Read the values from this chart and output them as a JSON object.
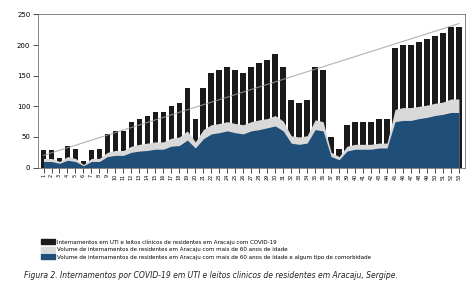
{
  "title": "",
  "figure_caption": "Figura 2. Internamentos por COVID-19 em UTI e leitos clinicos de residentes em Aracaju, Sergipe.",
  "ylabel": "",
  "ylim": [
    0,
    250
  ],
  "yticks": [
    0,
    50,
    100,
    150,
    200,
    250
  ],
  "background_color": "#ffffff",
  "bar_color": "#1a1a1a",
  "area1_color": "#d9d9d9",
  "area2_color": "#1f4e79",
  "trendline_color": "#a0a0a0",
  "legend_labels": [
    "Internamentos em UTI e leitos clínicos de residentes em Aracaju com COVID-19",
    "Volume de internamentos de residentes em Aracaju com mais de 60 anos de idade",
    "Volume de internamentos de residentes em Aracaju com mais de 60 anos de idade e algum tipo de comorbidade"
  ],
  "bar_values": [
    28,
    28,
    15,
    35,
    30,
    10,
    28,
    30,
    55,
    60,
    60,
    75,
    80,
    85,
    90,
    90,
    100,
    105,
    130,
    80,
    130,
    155,
    160,
    165,
    160,
    155,
    165,
    170,
    175,
    185,
    165,
    110,
    105,
    110,
    165,
    160,
    50,
    30,
    70,
    75,
    75,
    75,
    80,
    80,
    195,
    200,
    200,
    205,
    210,
    215,
    220,
    230,
    230
  ],
  "area1_values": [
    15,
    15,
    10,
    18,
    15,
    5,
    15,
    15,
    25,
    28,
    28,
    35,
    38,
    40,
    42,
    42,
    48,
    50,
    60,
    42,
    62,
    70,
    72,
    75,
    72,
    70,
    75,
    78,
    80,
    85,
    76,
    52,
    50,
    52,
    78,
    75,
    25,
    18,
    35,
    38,
    38,
    38,
    40,
    40,
    95,
    98,
    98,
    100,
    102,
    105,
    107,
    112,
    112
  ],
  "area2_values": [
    10,
    10,
    7,
    12,
    10,
    3,
    10,
    10,
    18,
    20,
    20,
    25,
    27,
    28,
    30,
    30,
    35,
    36,
    45,
    32,
    47,
    55,
    57,
    60,
    57,
    55,
    60,
    62,
    65,
    68,
    60,
    40,
    38,
    40,
    62,
    60,
    18,
    13,
    27,
    30,
    30,
    30,
    32,
    32,
    75,
    77,
    77,
    80,
    82,
    85,
    87,
    90,
    90
  ]
}
